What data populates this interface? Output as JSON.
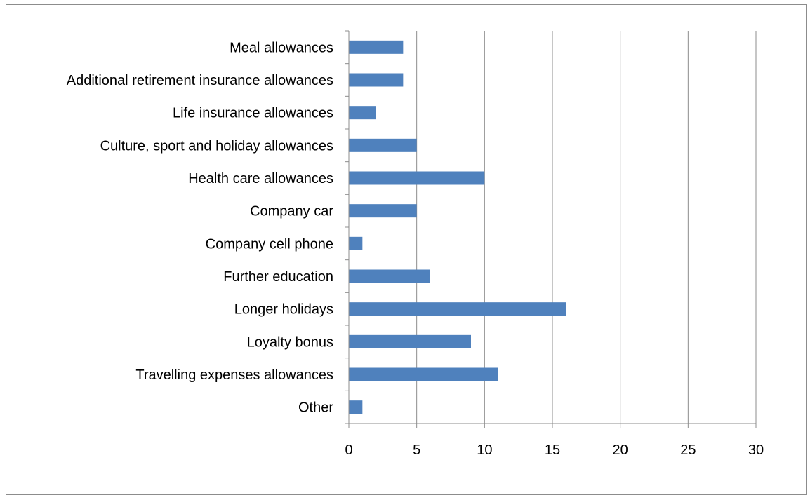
{
  "chart_data": {
    "type": "bar",
    "orientation": "horizontal",
    "title": "",
    "xlabel": "",
    "ylabel": "",
    "categories": [
      "Meal allowances",
      "Additional retirement  insurance allowances",
      "Life insurance allowances",
      "Culture, sport and holiday allowances",
      "Health care allowances",
      "Company car",
      "Company cell phone",
      "Further education",
      "Longer holidays",
      "Loyalty bonus",
      "Travelling expenses  allowances",
      "Other"
    ],
    "values": [
      4,
      4,
      2,
      5,
      10,
      5,
      1,
      6,
      16,
      9,
      11,
      1
    ],
    "xlim": [
      0,
      30
    ],
    "xticks": [
      "0",
      "5",
      "10",
      "15",
      "20",
      "25",
      "30"
    ],
    "grid": "vertical",
    "legend": "none",
    "bar_color": "#4f81bd"
  }
}
